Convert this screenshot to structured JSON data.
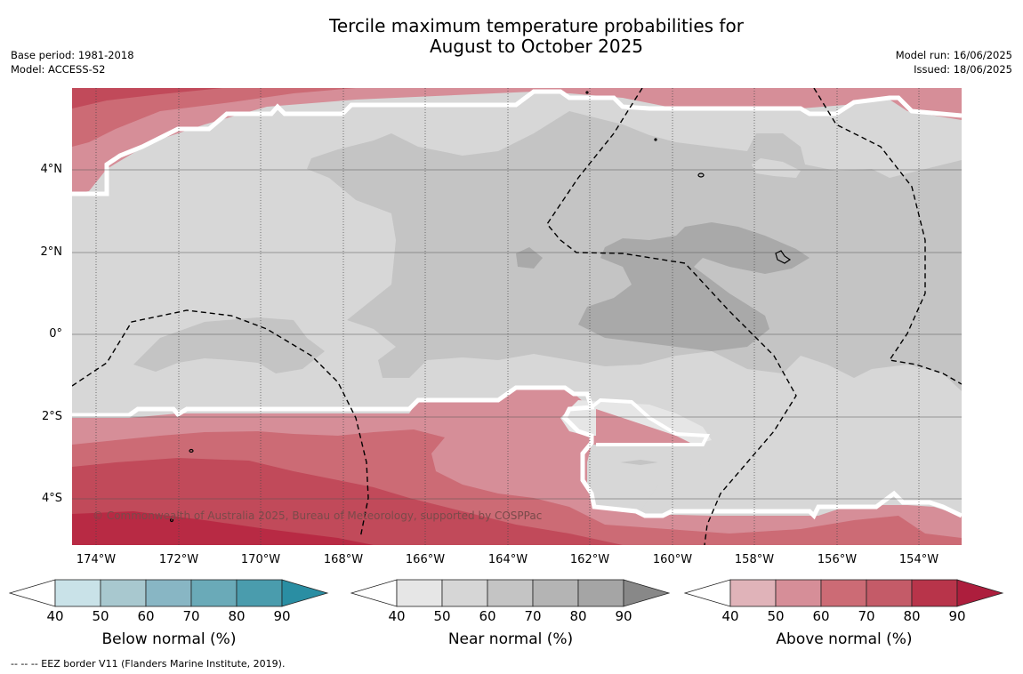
{
  "title": {
    "line1": "Tercile maximum temperature probabilities for",
    "line2": "August to October 2025"
  },
  "meta_left": {
    "base_period": "Base period: 1981-2018",
    "model": "Model: ACCESS-S2"
  },
  "meta_right": {
    "model_run": "Model run: 16/06/2025",
    "issued": "Issued: 18/06/2025"
  },
  "map": {
    "lat_labels": [
      "4°N",
      "2°N",
      "0°",
      "2°S",
      "4°S"
    ],
    "lon_labels": [
      "174°W",
      "172°W",
      "170°W",
      "168°W",
      "166°W",
      "164°W",
      "162°W",
      "160°W",
      "158°W",
      "156°W",
      "154°W"
    ],
    "copyright": "© Commonwealth of Australia 2025, Bureau of Meteorology, supported by COSPPac",
    "colors": {
      "near_40_50": "#d7d7d7",
      "near_50_60": "#c4c4c4",
      "near_60_70": "#a9a9a9",
      "above_40_50": "#e0b3b9",
      "above_50_60": "#d68e98",
      "above_60_70": "#cc6b75",
      "above_70_80": "#c14a5a",
      "above_80_90": "#b82a44"
    }
  },
  "colorbars": [
    {
      "title": "Below normal (%)",
      "ticks": [
        "40",
        "50",
        "60",
        "70",
        "80",
        "90"
      ],
      "colors": [
        "#c9e2e8",
        "#a8c8cf",
        "#88b6c4",
        "#6aaab8",
        "#4a9cad",
        "#2a8ea3"
      ]
    },
    {
      "title": "Near normal (%)",
      "ticks": [
        "40",
        "50",
        "60",
        "70",
        "80",
        "90"
      ],
      "colors": [
        "#e6e6e6",
        "#d6d6d6",
        "#c4c4c4",
        "#b4b4b4",
        "#a5a5a5",
        "#888888"
      ]
    },
    {
      "title": "Above normal (%)",
      "ticks": [
        "40",
        "50",
        "60",
        "70",
        "80",
        "90"
      ],
      "colors": [
        "#e0b3b9",
        "#d68e98",
        "#cc6b75",
        "#c45b68",
        "#b8344a",
        "#ad1e3d"
      ]
    }
  ],
  "footer": "--  --  -- EEZ border V11 (Flanders Marine Institute, 2019)."
}
